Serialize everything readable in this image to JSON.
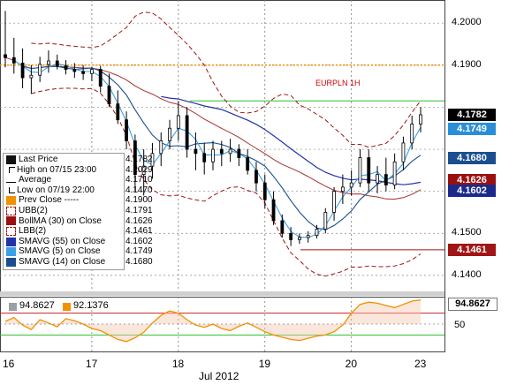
{
  "chart_data": {
    "type": "candlestick",
    "title": "EURPLN 1H",
    "xlabel": "Jul 2012",
    "x_ticks": [
      "16",
      "17",
      "18",
      "19",
      "20",
      "23"
    ],
    "y_ticks": [
      "4.2000",
      "4.1900",
      "4.1500",
      "4.1400"
    ],
    "ylim": [
      4.1362,
      4.2055
    ],
    "grid": true,
    "legend_position": "left-middle",
    "legend": [
      {
        "name": "Last Price",
        "value": "4.1782",
        "symbol": "black-square"
      },
      {
        "name": "High on 07/15 23:00",
        "value": "4.2029",
        "symbol": "high-marker"
      },
      {
        "name": "Average",
        "value": "4.1710",
        "symbol": "average-marker"
      },
      {
        "name": "Low on 07/19 22:00",
        "value": "4.1470",
        "symbol": "low-marker"
      },
      {
        "name": "Prev Close -----",
        "value": "4.1900",
        "symbol": "orange-square"
      },
      {
        "name": "UBB(2)",
        "value": "4.1791",
        "symbol": "red-dash-square"
      },
      {
        "name": "BollMA (30) on Close",
        "value": "4.1626",
        "symbol": "darkred-square"
      },
      {
        "name": "LBB(2)",
        "value": "4.1461",
        "symbol": "red-dash-square"
      },
      {
        "name": "SMAVG (55) on Close",
        "value": "4.1602",
        "symbol": "navy-square"
      },
      {
        "name": "SMAVG (5) on Close",
        "value": "4.1749",
        "symbol": "lightblue-square"
      },
      {
        "name": "SMAVG (14) on Close",
        "value": "4.1680",
        "symbol": "blue-square"
      }
    ],
    "right_tags": [
      {
        "value": "4.1782",
        "color": "#000000"
      },
      {
        "value": "4.1749",
        "color": "#2a8fd8"
      },
      {
        "value": "4.1680",
        "color": "#1a4e8e"
      },
      {
        "value": "4.1626",
        "color": "#9a1010"
      },
      {
        "value": "4.1602",
        "color": "#1b2a8a"
      },
      {
        "value": "4.1461",
        "color": "#a01515"
      }
    ],
    "reference_lines": [
      {
        "name": "Prev Close",
        "value": 4.19,
        "color": "#f29100"
      }
    ],
    "price_series": [
      {
        "t": 0,
        "o": 4.1925,
        "h": 4.2029,
        "l": 4.1895,
        "c": 4.1918
      },
      {
        "t": 2,
        "o": 4.1918,
        "h": 4.1965,
        "l": 4.188,
        "c": 4.1905
      },
      {
        "t": 4,
        "o": 4.1905,
        "h": 4.194,
        "l": 4.1845,
        "c": 4.187
      },
      {
        "t": 6,
        "o": 4.187,
        "h": 4.19,
        "l": 4.1832,
        "c": 4.1876
      },
      {
        "t": 8,
        "o": 4.1876,
        "h": 4.192,
        "l": 4.186,
        "c": 4.1902
      },
      {
        "t": 10,
        "o": 4.1902,
        "h": 4.1935,
        "l": 4.1882,
        "c": 4.191
      },
      {
        "t": 12,
        "o": 4.191,
        "h": 4.1925,
        "l": 4.189,
        "c": 4.1898
      },
      {
        "t": 14,
        "o": 4.1898,
        "h": 4.1912,
        "l": 4.1878,
        "c": 4.189
      },
      {
        "t": 16,
        "o": 4.189,
        "h": 4.1905,
        "l": 4.187,
        "c": 4.1885
      },
      {
        "t": 18,
        "o": 4.1885,
        "h": 4.19,
        "l": 4.1865,
        "c": 4.188
      },
      {
        "t": 20,
        "o": 4.188,
        "h": 4.1895,
        "l": 4.1862,
        "c": 4.189
      },
      {
        "t": 22,
        "o": 4.189,
        "h": 4.1898,
        "l": 4.1835,
        "c": 4.185
      },
      {
        "t": 24,
        "o": 4.185,
        "h": 4.188,
        "l": 4.18,
        "c": 4.1808
      },
      {
        "t": 26,
        "o": 4.1808,
        "h": 4.184,
        "l": 4.176,
        "c": 4.177
      },
      {
        "t": 28,
        "o": 4.177,
        "h": 4.179,
        "l": 4.17,
        "c": 4.172
      },
      {
        "t": 30,
        "o": 4.172,
        "h": 4.1735,
        "l": 4.16,
        "c": 4.164
      },
      {
        "t": 32,
        "o": 4.164,
        "h": 4.17,
        "l": 4.159,
        "c": 4.166
      },
      {
        "t": 34,
        "o": 4.166,
        "h": 4.1715,
        "l": 4.163,
        "c": 4.169
      },
      {
        "t": 36,
        "o": 4.169,
        "h": 4.174,
        "l": 4.166,
        "c": 4.172
      },
      {
        "t": 38,
        "o": 4.172,
        "h": 4.177,
        "l": 4.17,
        "c": 4.175
      },
      {
        "t": 40,
        "o": 4.175,
        "h": 4.1815,
        "l": 4.172,
        "c": 4.178
      },
      {
        "t": 42,
        "o": 4.178,
        "h": 4.18,
        "l": 4.168,
        "c": 4.17
      },
      {
        "t": 44,
        "o": 4.17,
        "h": 4.174,
        "l": 4.165,
        "c": 4.169
      },
      {
        "t": 46,
        "o": 4.169,
        "h": 4.1715,
        "l": 4.164,
        "c": 4.167
      },
      {
        "t": 48,
        "o": 4.167,
        "h": 4.172,
        "l": 4.165,
        "c": 4.17
      },
      {
        "t": 50,
        "o": 4.17,
        "h": 4.172,
        "l": 4.166,
        "c": 4.169
      },
      {
        "t": 52,
        "o": 4.169,
        "h": 4.1725,
        "l": 4.167,
        "c": 4.17
      },
      {
        "t": 54,
        "o": 4.17,
        "h": 4.1712,
        "l": 4.166,
        "c": 4.168
      },
      {
        "t": 56,
        "o": 4.168,
        "h": 4.17,
        "l": 4.164,
        "c": 4.165
      },
      {
        "t": 58,
        "o": 4.165,
        "h": 4.167,
        "l": 4.16,
        "c": 4.162
      },
      {
        "t": 60,
        "o": 4.162,
        "h": 4.164,
        "l": 4.156,
        "c": 4.158
      },
      {
        "t": 62,
        "o": 4.158,
        "h": 4.16,
        "l": 4.152,
        "c": 4.153
      },
      {
        "t": 64,
        "o": 4.153,
        "h": 4.1545,
        "l": 4.149,
        "c": 4.15
      },
      {
        "t": 66,
        "o": 4.15,
        "h": 4.1515,
        "l": 4.147,
        "c": 4.1485
      },
      {
        "t": 68,
        "o": 4.1485,
        "h": 4.15,
        "l": 4.1475,
        "c": 4.149
      },
      {
        "t": 70,
        "o": 4.149,
        "h": 4.1505,
        "l": 4.1478,
        "c": 4.1495
      },
      {
        "t": 72,
        "o": 4.1495,
        "h": 4.152,
        "l": 4.1488,
        "c": 4.151
      },
      {
        "t": 74,
        "o": 4.151,
        "h": 4.156,
        "l": 4.15,
        "c": 4.155
      },
      {
        "t": 76,
        "o": 4.155,
        "h": 4.161,
        "l": 4.153,
        "c": 4.16
      },
      {
        "t": 78,
        "o": 4.16,
        "h": 4.164,
        "l": 4.157,
        "c": 4.161
      },
      {
        "t": 80,
        "o": 4.161,
        "h": 4.165,
        "l": 4.159,
        "c": 4.162
      },
      {
        "t": 82,
        "o": 4.162,
        "h": 4.17,
        "l": 4.161,
        "c": 4.168
      },
      {
        "t": 84,
        "o": 4.168,
        "h": 4.17,
        "l": 4.16,
        "c": 4.162
      },
      {
        "t": 86,
        "o": 4.162,
        "h": 4.166,
        "l": 4.1595,
        "c": 4.164
      },
      {
        "t": 88,
        "o": 4.164,
        "h": 4.168,
        "l": 4.16,
        "c": 4.1615
      },
      {
        "t": 90,
        "o": 4.1615,
        "h": 4.169,
        "l": 4.1605,
        "c": 4.167
      },
      {
        "t": 92,
        "o": 4.167,
        "h": 4.173,
        "l": 4.165,
        "c": 4.1715
      },
      {
        "t": 94,
        "o": 4.1715,
        "h": 4.178,
        "l": 4.17,
        "c": 4.176
      },
      {
        "t": 96,
        "o": 4.176,
        "h": 4.18,
        "l": 4.174,
        "c": 4.1782
      }
    ]
  },
  "oscillator": {
    "ytick": "50",
    "tag_value": "94.8627",
    "legend": [
      {
        "value": "94.8627",
        "color": "#9aa0a6"
      },
      {
        "value": "92.1376",
        "color": "#f29100"
      }
    ],
    "upper_level": 70,
    "lower_level": 30,
    "values": [
      55,
      62,
      48,
      40,
      58,
      52,
      45,
      60,
      56,
      50,
      42,
      38,
      30,
      22,
      18,
      25,
      35,
      52,
      66,
      74,
      70,
      58,
      48,
      44,
      50,
      42,
      38,
      46,
      52,
      44,
      36,
      30,
      26,
      22,
      20,
      24,
      28,
      30,
      36,
      48,
      70,
      86,
      90,
      88,
      84,
      80,
      86,
      92,
      94
    ]
  },
  "colors": {
    "up": "#000000",
    "down": "#000000",
    "bb": "#a01515",
    "bollma": "#a83030",
    "sma55": "#2233aa",
    "sma5": "#3aa0e8",
    "sma14": "#1a4e8e",
    "prevclose": "#f29100",
    "green": "#2fbf2f"
  }
}
